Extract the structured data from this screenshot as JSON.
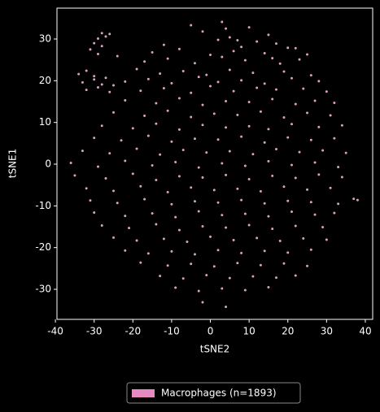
{
  "chart_data": {
    "type": "scatter",
    "xlabel": "tSNE2",
    "ylabel": "tSNE1",
    "xlim": [
      -39.6,
      41.9
    ],
    "ylim": [
      -37.2,
      37.4
    ],
    "xticks": [
      -40,
      -30,
      -20,
      -10,
      0,
      10,
      20,
      30,
      40
    ],
    "yticks": [
      -30,
      -20,
      -10,
      0,
      10,
      20,
      30
    ],
    "grid": false,
    "legend": "lower center",
    "series": [
      {
        "name": "Macrophages (n=1893)",
        "color": "#e78ac3",
        "x": [
          3,
          4,
          -5,
          10,
          -28,
          -27,
          -26,
          -29,
          -2,
          5,
          7,
          15,
          -28,
          -30,
          -12,
          2,
          8,
          12,
          17,
          22,
          -31,
          -29,
          -15,
          -8,
          0,
          6,
          14,
          20,
          25,
          -24,
          -17,
          -11,
          -4,
          3,
          9,
          16,
          18,
          23,
          -34,
          -32,
          -30,
          -19,
          -13,
          -7,
          -1,
          5,
          11,
          19,
          26,
          -33,
          -30,
          -28,
          -27,
          -22,
          -16,
          -10,
          -3,
          2,
          8,
          14,
          21,
          28,
          -32,
          -29,
          -26,
          -25,
          -18,
          -12,
          -5,
          0,
          6,
          12,
          17,
          24,
          30,
          -22,
          -14,
          -8,
          -2,
          4,
          10,
          16,
          22,
          27,
          32,
          -25,
          -17,
          -11,
          -5,
          1,
          7,
          13,
          19,
          25,
          31,
          -28,
          -20,
          -14,
          -8,
          -2,
          4,
          10,
          15,
          21,
          28,
          34,
          -30,
          -23,
          -16,
          -10,
          -4,
          2,
          8,
          14,
          20,
          26,
          32,
          -33,
          -26,
          -19,
          -13,
          -7,
          -1,
          5,
          11,
          17,
          23,
          29,
          35,
          -36,
          -29,
          -22,
          -15,
          -9,
          -3,
          3,
          9,
          15,
          21,
          27,
          33,
          -35,
          -27,
          -20,
          -14,
          -8,
          -2,
          4,
          10,
          16,
          22,
          28,
          34,
          -32,
          -25,
          -18,
          -11,
          -5,
          1,
          7,
          13,
          19,
          25,
          31,
          37,
          -31,
          -24,
          -17,
          -10,
          -4,
          2,
          8,
          14,
          20,
          26,
          33,
          38,
          -30,
          -22,
          -15,
          -9,
          -3,
          3,
          9,
          15,
          21,
          27,
          32,
          -28,
          -21,
          -14,
          -8,
          -2,
          4,
          10,
          16,
          22,
          29,
          -25,
          -19,
          -12,
          -6,
          0,
          6,
          12,
          18,
          24,
          30,
          -22,
          -16,
          -10,
          -4,
          2,
          8,
          14,
          20,
          26,
          -18,
          -11,
          -5,
          1,
          7,
          13,
          19,
          25,
          -13,
          -7,
          -1,
          5,
          11,
          17,
          22,
          -9,
          -3,
          3,
          9,
          15,
          -2,
          4
        ],
        "values": [
          34.1,
          32.5,
          33.3,
          32.8,
          31.4,
          30.6,
          31.2,
          30.1,
          31.8,
          30.4,
          29.7,
          31.0,
          28.3,
          29.0,
          28.6,
          29.8,
          28.1,
          29.4,
          28.9,
          27.8,
          27.5,
          26.4,
          26.8,
          27.6,
          26.2,
          27.1,
          26.6,
          27.9,
          26.3,
          25.9,
          24.6,
          25.3,
          24.2,
          25.7,
          24.9,
          25.4,
          24.1,
          25.1,
          21.6,
          22.4,
          21.1,
          22.8,
          21.7,
          22.3,
          21.4,
          22.6,
          21.9,
          22.2,
          21.3,
          19.6,
          20.3,
          19.1,
          20.7,
          19.8,
          20.4,
          19.4,
          20.9,
          19.7,
          20.1,
          19.3,
          20.6,
          19.9,
          17.8,
          18.4,
          17.3,
          18.9,
          17.6,
          18.2,
          17.1,
          18.7,
          17.5,
          18.3,
          17.9,
          18.1,
          17.4,
          15.3,
          14.6,
          15.8,
          14.2,
          15.1,
          14.9,
          15.6,
          14.4,
          15.2,
          14.7,
          12.4,
          11.6,
          12.8,
          11.3,
          12.1,
          11.8,
          12.6,
          11.2,
          12.3,
          11.7,
          9.2,
          8.6,
          9.7,
          8.3,
          9.4,
          8.8,
          9.1,
          8.4,
          9.6,
          8.9,
          9.3,
          6.3,
          5.7,
          6.8,
          5.4,
          6.1,
          5.9,
          6.6,
          5.2,
          6.4,
          5.8,
          6.2,
          3.2,
          2.6,
          3.7,
          2.3,
          3.4,
          2.8,
          3.1,
          2.4,
          3.6,
          2.9,
          3.3,
          2.7,
          0.3,
          -0.6,
          0.8,
          -0.3,
          0.5,
          -0.8,
          0.2,
          -0.4,
          0.7,
          -0.2,
          0.4,
          -0.7,
          -2.7,
          -3.4,
          -2.3,
          -3.8,
          -2.9,
          -3.2,
          -2.6,
          -3.6,
          -2.8,
          -3.3,
          -2.5,
          -3.1,
          -5.8,
          -6.4,
          -5.3,
          -6.7,
          -5.6,
          -6.2,
          -5.9,
          -6.5,
          -5.4,
          -6.1,
          -5.7,
          -8.3,
          -8.7,
          -9.3,
          -8.4,
          -9.6,
          -8.9,
          -9.2,
          -8.6,
          -9.4,
          -8.8,
          -9.1,
          -9.5,
          -8.6,
          -11.6,
          -12.4,
          -11.8,
          -12.7,
          -11.3,
          -12.2,
          -11.9,
          -12.5,
          -11.4,
          -12.1,
          -11.7,
          -14.7,
          -15.3,
          -14.4,
          -15.8,
          -14.9,
          -15.2,
          -14.6,
          -15.5,
          -14.8,
          -15.1,
          -17.6,
          -18.3,
          -17.9,
          -18.6,
          -17.4,
          -18.2,
          -17.7,
          -18.4,
          -17.8,
          -18.1,
          -20.7,
          -21.4,
          -20.9,
          -21.6,
          -20.6,
          -21.3,
          -20.8,
          -21.2,
          -20.5,
          -23.6,
          -24.3,
          -23.9,
          -24.5,
          -23.7,
          -24.2,
          -23.8,
          -24.4,
          -26.8,
          -27.4,
          -26.6,
          -27.3,
          -26.9,
          -27.2,
          -26.7,
          -29.6,
          -30.4,
          -29.8,
          -30.2,
          -29.5,
          -33.1,
          -34.2
        ]
      }
    ]
  }
}
